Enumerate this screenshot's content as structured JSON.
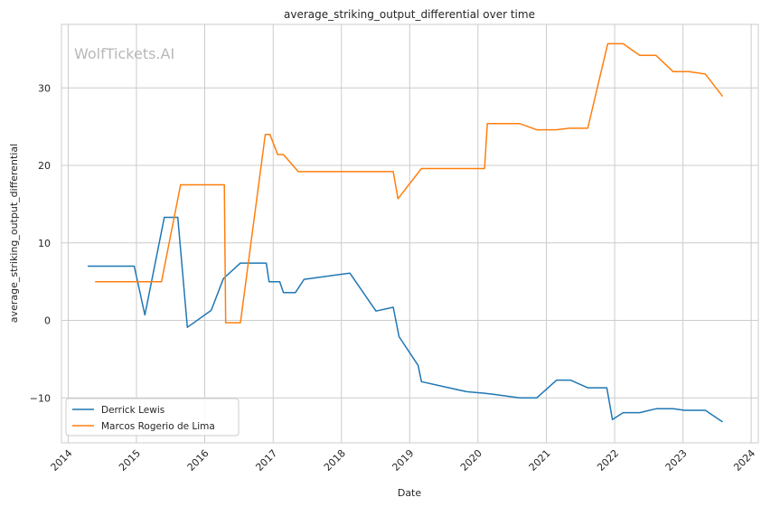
{
  "chart_data": {
    "type": "line",
    "title": "average_striking_output_differential over time",
    "xlabel": "Date",
    "ylabel": "average_striking_output_differential",
    "watermark": "WolfTickets.AI",
    "xlim": [
      "2013-11-26",
      "2024-02-08"
    ],
    "ylim": [
      -15.8,
      38.2
    ],
    "x_ticks": [
      {
        "date": "2014-01-01",
        "label": "2014"
      },
      {
        "date": "2015-01-01",
        "label": "2015"
      },
      {
        "date": "2016-01-01",
        "label": "2016"
      },
      {
        "date": "2017-01-01",
        "label": "2017"
      },
      {
        "date": "2018-01-01",
        "label": "2018"
      },
      {
        "date": "2019-01-01",
        "label": "2019"
      },
      {
        "date": "2020-01-01",
        "label": "2020"
      },
      {
        "date": "2021-01-01",
        "label": "2021"
      },
      {
        "date": "2022-01-01",
        "label": "2022"
      },
      {
        "date": "2023-01-01",
        "label": "2023"
      },
      {
        "date": "2024-01-01",
        "label": "2024"
      }
    ],
    "y_ticks": [
      {
        "value": -10,
        "label": "−10"
      },
      {
        "value": 0,
        "label": "0"
      },
      {
        "value": 10,
        "label": "10"
      },
      {
        "value": 20,
        "label": "20"
      },
      {
        "value": 30,
        "label": "30"
      }
    ],
    "grid": true,
    "legend_position": "lower-left",
    "series": [
      {
        "name": "Derrick Lewis",
        "color": "#1f77b4",
        "points": [
          [
            "2014-04-15",
            7.0
          ],
          [
            "2014-12-20",
            7.0
          ],
          [
            "2015-02-15",
            0.7
          ],
          [
            "2015-05-30",
            13.3
          ],
          [
            "2015-08-10",
            13.3
          ],
          [
            "2015-09-30",
            -0.9
          ],
          [
            "2016-02-05",
            1.3
          ],
          [
            "2016-04-10",
            5.4
          ],
          [
            "2016-07-10",
            7.4
          ],
          [
            "2016-11-25",
            7.4
          ],
          [
            "2016-12-10",
            5.0
          ],
          [
            "2017-02-05",
            5.0
          ],
          [
            "2017-02-25",
            3.6
          ],
          [
            "2017-04-30",
            3.6
          ],
          [
            "2017-06-15",
            5.3
          ],
          [
            "2018-02-15",
            6.1
          ],
          [
            "2018-07-05",
            1.2
          ],
          [
            "2018-10-05",
            1.7
          ],
          [
            "2018-11-05",
            -2.1
          ],
          [
            "2019-02-15",
            -5.8
          ],
          [
            "2019-03-05",
            -7.9
          ],
          [
            "2019-11-01",
            -9.2
          ],
          [
            "2020-02-05",
            -9.4
          ],
          [
            "2020-04-10",
            -9.6
          ],
          [
            "2020-08-10",
            -10.0
          ],
          [
            "2020-11-10",
            -10.0
          ],
          [
            "2021-02-25",
            -7.7
          ],
          [
            "2021-05-10",
            -7.7
          ],
          [
            "2021-08-10",
            -8.7
          ],
          [
            "2021-11-20",
            -8.7
          ],
          [
            "2021-12-20",
            -12.8
          ],
          [
            "2022-02-15",
            -11.9
          ],
          [
            "2022-05-15",
            -11.9
          ],
          [
            "2022-08-10",
            -11.4
          ],
          [
            "2022-11-10",
            -11.4
          ],
          [
            "2023-01-10",
            -11.6
          ],
          [
            "2023-05-01",
            -11.6
          ],
          [
            "2023-08-01",
            -13.1
          ]
        ]
      },
      {
        "name": "Marcos Rogerio de Lima",
        "color": "#ff7f0e",
        "points": [
          [
            "2014-05-25",
            5.0
          ],
          [
            "2015-05-15",
            5.0
          ],
          [
            "2015-08-25",
            17.5
          ],
          [
            "2016-04-15",
            17.5
          ],
          [
            "2016-04-22",
            -0.3
          ],
          [
            "2016-07-10",
            -0.3
          ],
          [
            "2016-11-20",
            24.0
          ],
          [
            "2016-12-15",
            24.0
          ],
          [
            "2017-01-25",
            21.4
          ],
          [
            "2017-02-25",
            21.4
          ],
          [
            "2017-05-15",
            19.2
          ],
          [
            "2018-10-05",
            19.2
          ],
          [
            "2018-10-30",
            15.7
          ],
          [
            "2019-03-05",
            19.6
          ],
          [
            "2020-02-05",
            19.6
          ],
          [
            "2020-02-20",
            25.4
          ],
          [
            "2020-08-10",
            25.4
          ],
          [
            "2020-11-10",
            24.6
          ],
          [
            "2021-02-20",
            24.6
          ],
          [
            "2021-05-05",
            24.8
          ],
          [
            "2021-08-10",
            24.8
          ],
          [
            "2021-11-25",
            35.7
          ],
          [
            "2022-02-15",
            35.7
          ],
          [
            "2022-05-15",
            34.2
          ],
          [
            "2022-08-10",
            34.2
          ],
          [
            "2022-11-10",
            32.1
          ],
          [
            "2023-02-01",
            32.1
          ],
          [
            "2023-05-01",
            31.8
          ],
          [
            "2023-08-01",
            28.9
          ]
        ]
      }
    ]
  }
}
